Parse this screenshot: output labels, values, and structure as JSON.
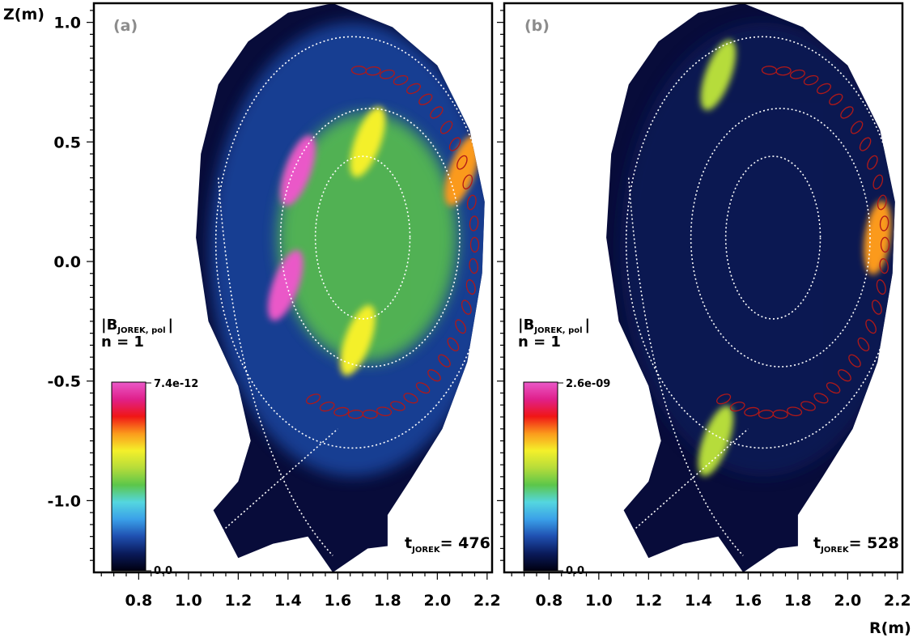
{
  "chart_data": [
    {
      "type": "heatmap",
      "panel_label": "(a)",
      "ylabel": "Z(m)",
      "xlabel": "",
      "xlim": [
        0.62,
        2.22
      ],
      "ylim": [
        -1.3,
        1.08
      ],
      "xticks": [
        "0.8",
        "1.0",
        "1.2",
        "1.4",
        "1.6",
        "1.8",
        "2.0",
        "2.2"
      ],
      "yticks": [
        "1.0",
        "0.5",
        "0.0",
        "-0.5",
        "-1.0"
      ],
      "quantity": {
        "main": "|B",
        "sub": "JOREK, pol",
        "end": "|"
      },
      "mode": "n = 1",
      "colorbar": {
        "max": "7.4e-12",
        "min": "0.0"
      },
      "time": {
        "main": "t",
        "sub": "JOREK",
        "value": "= 476"
      },
      "hotspots": [
        {
          "r": 1.44,
          "z": 0.38,
          "level": 1.0
        },
        {
          "r": 1.39,
          "z": -0.1,
          "level": 1.0
        },
        {
          "r": 1.72,
          "z": 0.5,
          "level": 0.62
        },
        {
          "r": 1.68,
          "z": -0.33,
          "level": 0.62
        },
        {
          "r": 2.1,
          "z": 0.38,
          "level": 0.72
        }
      ]
    },
    {
      "type": "heatmap",
      "panel_label": "(b)",
      "ylabel": "",
      "xlabel": "R(m)",
      "xlim": [
        0.62,
        2.22
      ],
      "ylim": [
        -1.3,
        1.08
      ],
      "xticks": [
        "0.8",
        "1.0",
        "1.2",
        "1.4",
        "1.6",
        "1.8",
        "2.0",
        "2.2"
      ],
      "quantity": {
        "main": "|B",
        "sub": "JOREK, pol",
        "end": "|"
      },
      "mode": "n = 1",
      "colorbar": {
        "max": "2.6e-09",
        "min": "0.0"
      },
      "time": {
        "main": "t",
        "sub": "JOREK",
        "value": "= 528"
      },
      "hotspots": [
        {
          "r": 2.12,
          "z": 0.1,
          "level": 0.72
        },
        {
          "r": 1.48,
          "z": 0.78,
          "level": 0.5
        },
        {
          "r": 1.47,
          "z": -0.75,
          "level": 0.55
        }
      ]
    }
  ],
  "colors": {
    "colormap": [
      "#000010",
      "#0a1a5a",
      "#1f4fb0",
      "#3aa0e8",
      "#54d6e0",
      "#5cc64a",
      "#b6dc3a",
      "#f4f02a",
      "#fb9a1c",
      "#f01616",
      "#e0208a",
      "#ea58c8"
    ],
    "background": "#080c3a",
    "separatrix": "#ffffff",
    "contour": "#b01818"
  }
}
